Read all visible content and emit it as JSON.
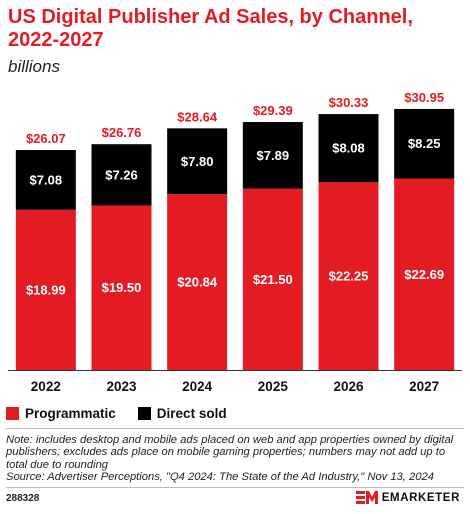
{
  "title": "US Digital Publisher Ad Sales, by Channel, 2022-2027",
  "subtitle": "billions",
  "chart_data": {
    "type": "bar",
    "stacked": true,
    "categories": [
      "2022",
      "2023",
      "2024",
      "2025",
      "2026",
      "2027"
    ],
    "series": [
      {
        "name": "Programmatic",
        "color": "#e31b23",
        "values": [
          18.99,
          19.5,
          20.84,
          21.5,
          22.25,
          22.69
        ],
        "labels": [
          "$18.99",
          "$19.50",
          "$20.84",
          "$21.50",
          "$22.25",
          "$22.69"
        ]
      },
      {
        "name": "Direct sold",
        "color": "#000000",
        "values": [
          7.08,
          7.26,
          7.8,
          7.89,
          8.08,
          8.25
        ],
        "labels": [
          "$7.08",
          "$7.26",
          "$7.80",
          "$7.89",
          "$8.08",
          "$8.25"
        ]
      }
    ],
    "totals": [
      26.07,
      26.76,
      28.64,
      29.39,
      30.33,
      30.95
    ],
    "total_labels": [
      "$26.07",
      "$26.76",
      "$28.64",
      "$29.39",
      "$30.33",
      "$30.95"
    ],
    "ylim": [
      0,
      32
    ],
    "legend": "bottom-left",
    "grid": false
  },
  "note": "Note: includes desktop and mobile ads placed on web and app properties owned by digital publishers; excludes ads place on mobile gaming properties; numbers may not add up to total due to rounding",
  "source": "Source: Advertiser Perceptions, \"Q4 2024: The State of the Ad Industry,\" Nov 13, 2024",
  "chart_id": "288328",
  "brand": "EMARKETER",
  "colors": {
    "accent": "#e31b23",
    "direct": "#000000"
  }
}
